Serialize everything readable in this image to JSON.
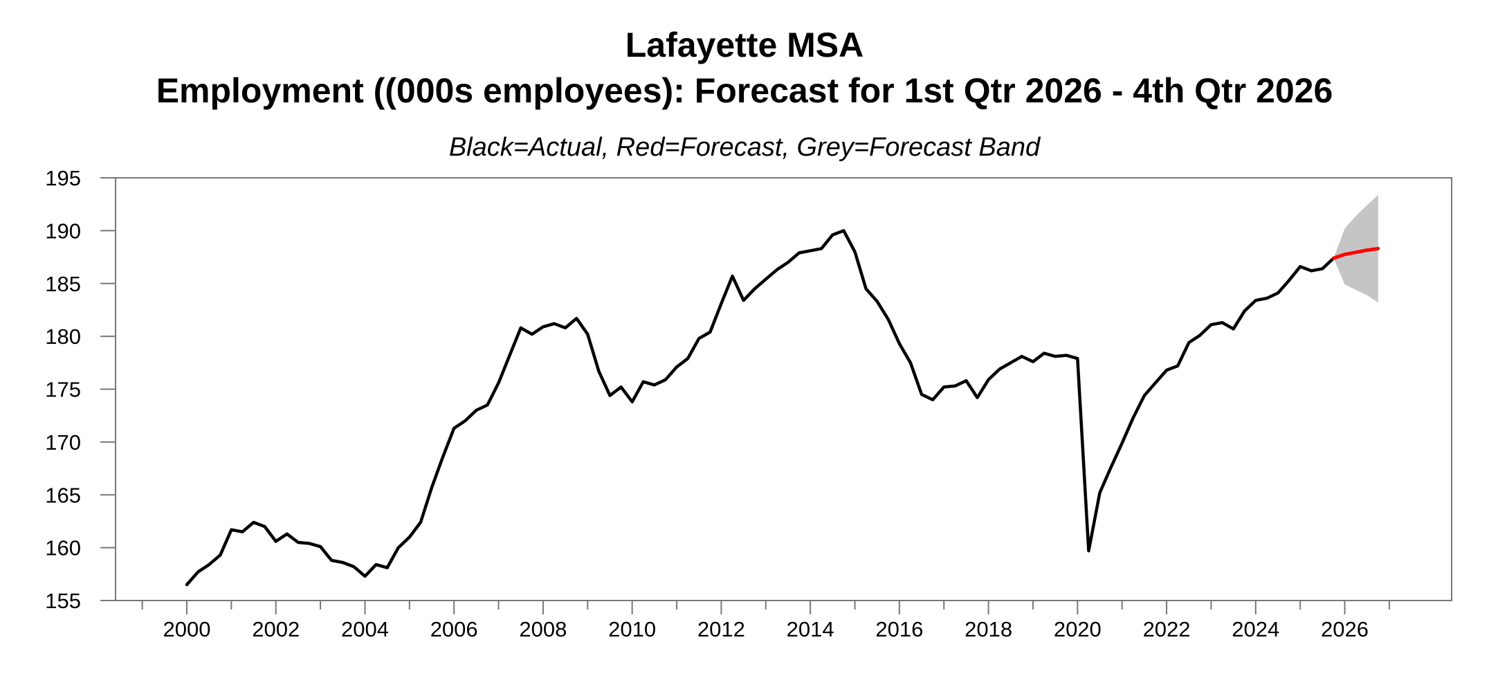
{
  "header": {
    "title_line1": "Lafayette MSA",
    "title_line2": "Employment ((000s employees): Forecast for 1st Qtr 2026 - 4th Qtr 2026",
    "legend_subtitle": "Black=Actual, Red=Forecast, Grey=Forecast Band"
  },
  "colors": {
    "actual_line": "#000000",
    "forecast_line": "#ff0000",
    "forecast_band": "#c5c5c5",
    "axis_box": "#777777",
    "tick_label": "#000000",
    "background": "#ffffff"
  },
  "chart_data": {
    "type": "line",
    "title": "Lafayette MSA — Employment ((000s employees): Forecast for 1st Qtr 2026 - 4th Qtr 2026",
    "legend": "Black=Actual, Red=Forecast, Grey=Forecast Band",
    "xlabel": "",
    "ylabel": "",
    "grid": false,
    "x_axis": {
      "range": [
        1998.4,
        2028.4
      ],
      "labeled_tick_years": [
        2000,
        2002,
        2004,
        2006,
        2008,
        2010,
        2012,
        2014,
        2016,
        2018,
        2020,
        2022,
        2024,
        2026
      ],
      "minor_tick_years": [
        1999,
        2001,
        2003,
        2005,
        2007,
        2009,
        2011,
        2013,
        2015,
        2017,
        2019,
        2021,
        2023,
        2025,
        2027
      ]
    },
    "y_axis": {
      "range": [
        155,
        195
      ],
      "ticks": [
        155,
        160,
        165,
        170,
        175,
        180,
        185,
        190,
        195
      ]
    },
    "series": [
      {
        "name": "Actual",
        "role": "actual",
        "color": "#000000",
        "x_start": 2000.0,
        "x_step": 0.25,
        "values": [
          156.5,
          157.7,
          158.4,
          159.3,
          161.7,
          161.5,
          162.4,
          162.0,
          160.6,
          161.3,
          160.5,
          160.4,
          160.1,
          158.8,
          158.6,
          158.2,
          157.3,
          158.4,
          158.1,
          160.0,
          161.0,
          162.4,
          165.7,
          168.6,
          171.3,
          172.0,
          173.0,
          173.5,
          175.6,
          178.2,
          180.8,
          180.2,
          180.9,
          181.2,
          180.8,
          181.7,
          180.2,
          176.7,
          174.4,
          175.2,
          173.8,
          175.7,
          175.4,
          175.9,
          177.1,
          177.9,
          179.8,
          180.4,
          183.1,
          185.7,
          183.4,
          184.5,
          185.4,
          186.3,
          187.0,
          187.9,
          188.1,
          188.3,
          189.6,
          190.0,
          188.0,
          184.5,
          183.3,
          181.6,
          179.3,
          177.5,
          174.5,
          174.0,
          175.2,
          175.3,
          175.8,
          174.2,
          175.9,
          176.9,
          177.5,
          178.1,
          177.6,
          178.4,
          178.1,
          178.2,
          177.9,
          159.7,
          165.2,
          167.6,
          169.9,
          172.3,
          174.4,
          175.6,
          176.8,
          177.2,
          179.4,
          180.1,
          181.1,
          181.3,
          180.7,
          182.4,
          183.4,
          183.6,
          184.1,
          185.3,
          186.6,
          186.2,
          186.4,
          187.4
        ]
      },
      {
        "name": "Forecast",
        "role": "forecast",
        "color": "#ff0000",
        "x": [
          2025.75,
          2026.0,
          2026.25,
          2026.5,
          2026.75
        ],
        "values": [
          187.4,
          187.75,
          187.95,
          188.15,
          188.3
        ]
      },
      {
        "name": "Forecast Band Upper",
        "role": "band_upper",
        "color": "#c5c5c5",
        "x": [
          2025.75,
          2026.0,
          2026.25,
          2026.5,
          2026.75
        ],
        "values": [
          187.4,
          190.2,
          191.4,
          192.4,
          193.4
        ]
      },
      {
        "name": "Forecast Band Lower",
        "role": "band_lower",
        "color": "#c5c5c5",
        "x": [
          2025.75,
          2026.0,
          2026.25,
          2026.5,
          2026.75
        ],
        "values": [
          187.4,
          184.9,
          184.4,
          183.9,
          183.2
        ]
      }
    ]
  }
}
